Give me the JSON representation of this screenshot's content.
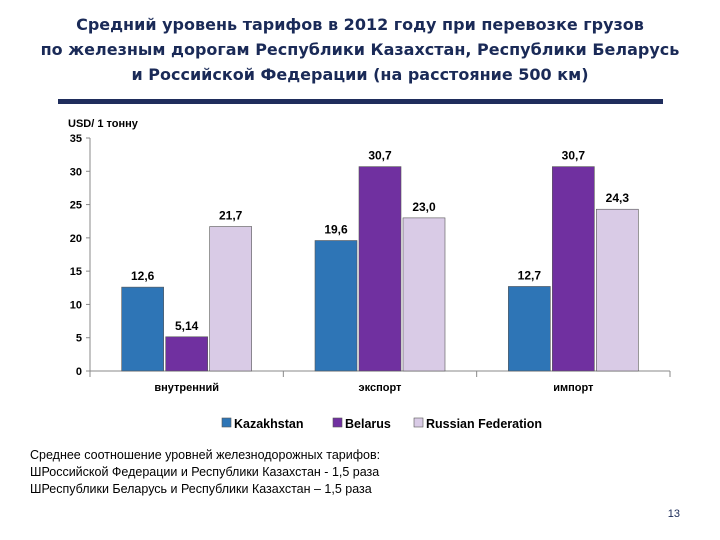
{
  "title_lines": [
    "Средний уровень тарифов в 2012 году при перевозке грузов",
    "по железным дорогам Республики Казахстан, Республики Беларусь",
    "и Российской Федерации (на расстояние 500 км)"
  ],
  "notes": [
    "Среднее соотношение уровней железнодорожных тарифов:",
    "ШРоссийской Федерации и Республики  Казахстан  - 1,5 раза",
    "ШРеспублики Беларусь и Республики Казахстан – 1,5 раза"
  ],
  "page_number": "13",
  "chart_data": {
    "type": "bar",
    "ylabel": "USD/ 1 тонну",
    "ylim": [
      0,
      35
    ],
    "yticks": [
      0,
      5,
      10,
      15,
      20,
      25,
      30,
      35
    ],
    "categories": [
      "внутренний",
      "экспорт",
      "импорт"
    ],
    "legend_position": "bottom",
    "series": [
      {
        "name": "Kazakhstan",
        "color": "#2e75b6",
        "values": [
          12.6,
          19.6,
          12.7
        ],
        "labels": [
          "12,6",
          "19,6",
          "12,7"
        ]
      },
      {
        "name": "Belarus",
        "color": "#7030a0",
        "values": [
          5.14,
          30.7,
          30.7
        ],
        "labels": [
          "5,14",
          "30,7",
          "30,7"
        ]
      },
      {
        "name": "Russian Federation",
        "color": "#d9cbe6",
        "values": [
          21.7,
          23.0,
          24.3
        ],
        "labels": [
          "21,7",
          "23,0",
          "24,3"
        ]
      }
    ]
  }
}
